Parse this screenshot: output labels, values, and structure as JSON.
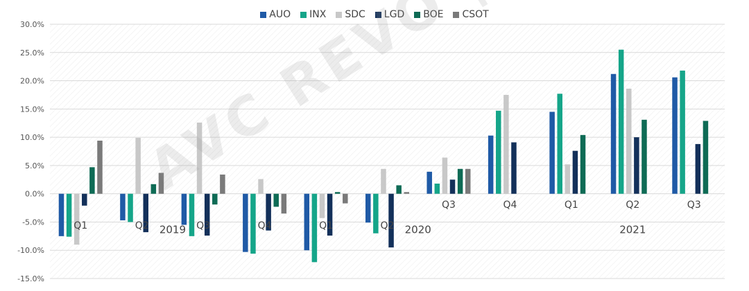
{
  "chart_data": {
    "type": "bar",
    "categories": [
      "Q1",
      "Q2",
      "Q3",
      "Q4",
      "Q1",
      "Q2",
      "Q3",
      "Q4",
      "Q1",
      "Q2",
      "Q3"
    ],
    "groups": [
      {
        "label": "2019",
        "start": 0,
        "end": 3
      },
      {
        "label": "2020",
        "start": 4,
        "end": 7
      },
      {
        "label": "2021",
        "start": 8,
        "end": 10
      }
    ],
    "series": [
      {
        "name": "AUO",
        "color": "#1f5aa6",
        "values": [
          -7.5,
          -4.7,
          -5.5,
          -10.3,
          -10.0,
          -5.1,
          3.9,
          10.3,
          14.5,
          21.2,
          20.6
        ]
      },
      {
        "name": "INX",
        "color": "#15a589",
        "values": [
          -7.6,
          -5.0,
          -7.5,
          -10.6,
          -12.1,
          -7.0,
          1.8,
          14.7,
          17.7,
          25.5,
          21.8
        ]
      },
      {
        "name": "SDC",
        "color": "#c8c8c8",
        "values": [
          -9.0,
          9.9,
          12.6,
          2.6,
          -4.3,
          4.4,
          6.4,
          17.5,
          5.2,
          18.6,
          null
        ]
      },
      {
        "name": "LGD",
        "color": "#13305a",
        "values": [
          -2.1,
          -6.8,
          -7.4,
          -6.5,
          -7.4,
          -9.5,
          2.5,
          9.1,
          7.6,
          10.0,
          8.8
        ]
      },
      {
        "name": "BOE",
        "color": "#0e6b55",
        "values": [
          4.7,
          1.7,
          -1.9,
          -2.3,
          0.3,
          1.5,
          4.4,
          null,
          10.4,
          13.1,
          12.9
        ]
      },
      {
        "name": "CSOT",
        "color": "#7a7a7a",
        "values": [
          9.4,
          3.7,
          3.4,
          -3.5,
          -1.7,
          0.3,
          4.4,
          null,
          null,
          null,
          null
        ]
      }
    ],
    "ylim": [
      -15,
      30
    ],
    "yticks": [
      "-15.0%",
      "-10.0%",
      "-5.0%",
      "0.0%",
      "5.0%",
      "10.0%",
      "15.0%",
      "20.0%",
      "25.0%",
      "30.0%"
    ],
    "ytick_values": [
      -15,
      -10,
      -5,
      0,
      5,
      10,
      15,
      20,
      25,
      30
    ],
    "grid": true,
    "legend_position": "top",
    "xlabel": "",
    "ylabel": "",
    "title": ""
  },
  "watermark": "AVC REVO | 奥维睿沃"
}
